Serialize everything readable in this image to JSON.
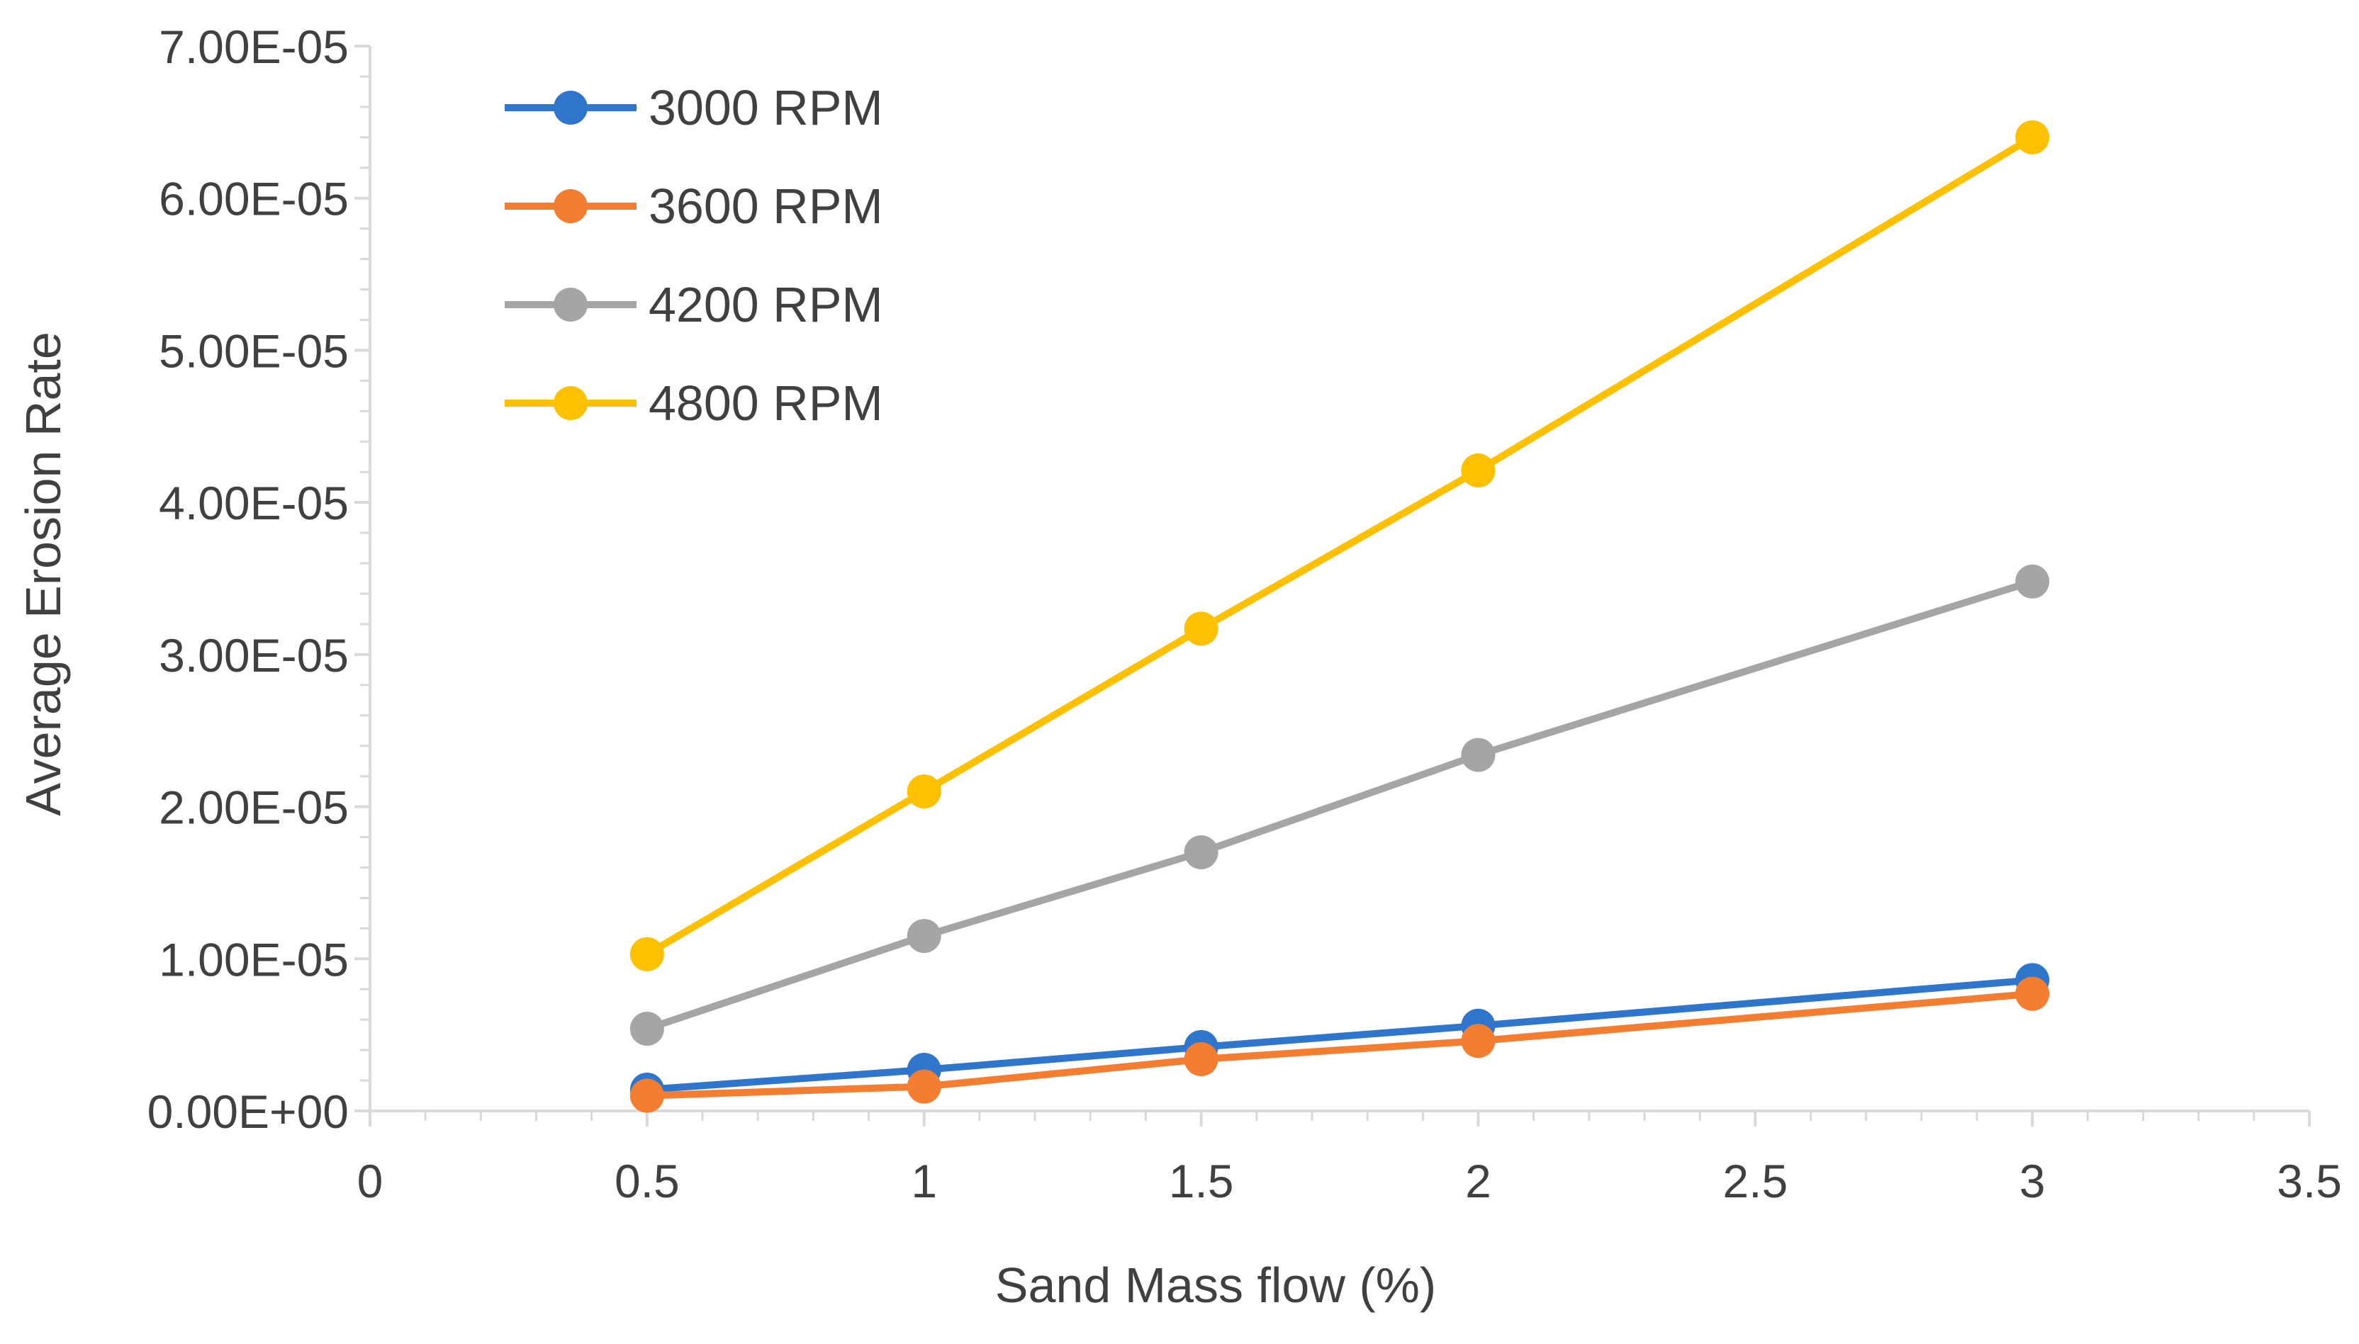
{
  "chart_data": {
    "type": "line",
    "title": "",
    "xlabel": "Sand Mass flow (%)",
    "ylabel": "Average Erosion Rate",
    "xlim": [
      0,
      3.5
    ],
    "ylim": [
      0,
      7e-05
    ],
    "x_ticks": [
      0,
      0.5,
      1,
      1.5,
      2,
      2.5,
      3,
      3.5
    ],
    "x_tick_labels": [
      "0",
      "0.5",
      "1",
      "1.5",
      "2",
      "2.5",
      "3",
      "3.5"
    ],
    "y_ticks": [
      0,
      1e-05,
      2e-05,
      3e-05,
      4e-05,
      5e-05,
      6e-05,
      7e-05
    ],
    "y_tick_labels": [
      "0.00E+00",
      "1.00E-05",
      "2.00E-05",
      "3.00E-05",
      "4.00E-05",
      "5.00E-05",
      "6.00E-05",
      "7.00E-05"
    ],
    "grid": false,
    "legend_position": "top-left",
    "x": [
      0.5,
      1,
      1.5,
      2,
      3
    ],
    "series": [
      {
        "name": "3000 RPM",
        "color": "#2E75CB",
        "values": [
          1.4e-06,
          2.7e-06,
          4.2e-06,
          5.6e-06,
          8.6e-06
        ]
      },
      {
        "name": "3600 RPM",
        "color": "#F37E32",
        "values": [
          1e-06,
          1.6e-06,
          3.4e-06,
          4.6e-06,
          7.7e-06
        ]
      },
      {
        "name": "4200 RPM",
        "color": "#A5A5A5",
        "values": [
          5.4e-06,
          1.15e-05,
          1.7e-05,
          2.34e-05,
          3.48e-05
        ]
      },
      {
        "name": "4800 RPM",
        "color": "#FFC000",
        "values": [
          1.03e-05,
          2.1e-05,
          3.17e-05,
          4.21e-05,
          6.4e-05
        ]
      }
    ]
  }
}
